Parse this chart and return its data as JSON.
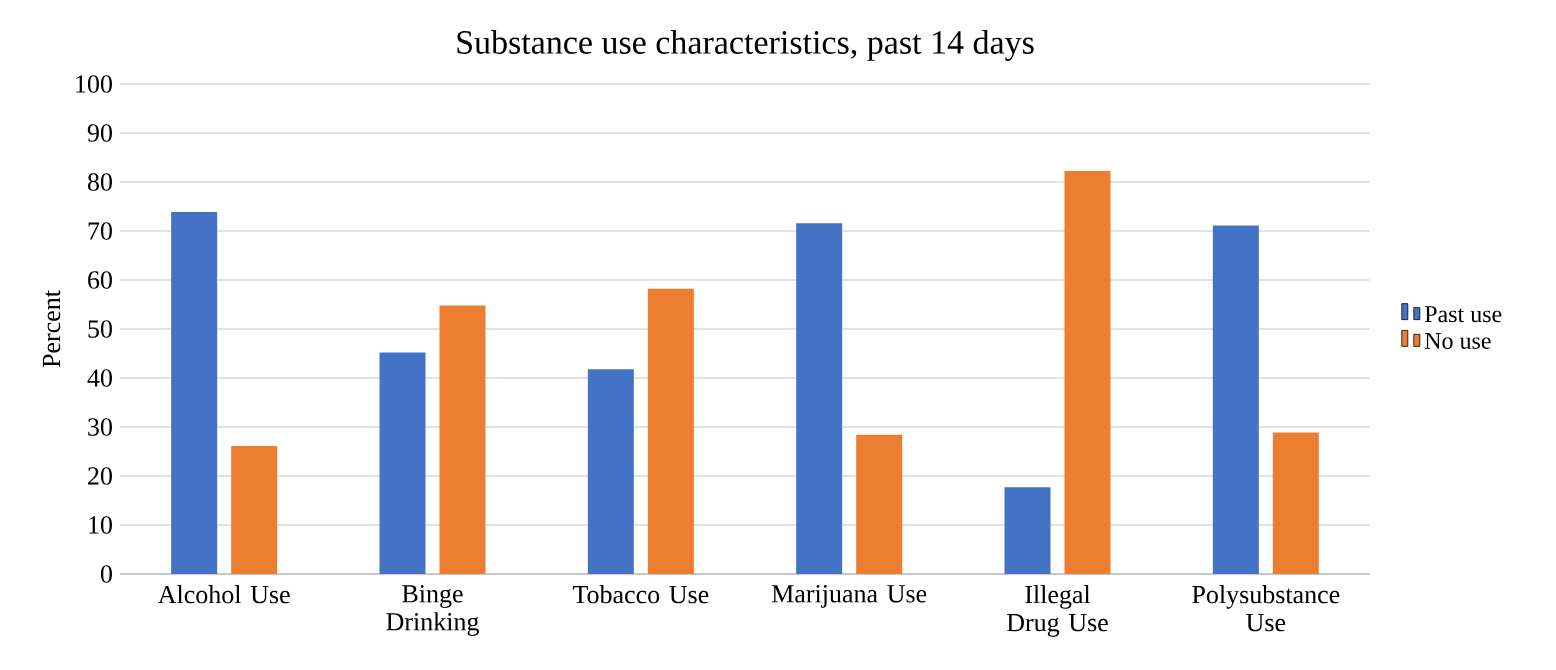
{
  "chart_data": {
    "type": "bar",
    "title": "Substance use characteristics, past 14 days",
    "ylabel": "Percent",
    "categories": [
      "Alcohol Use",
      "Binge Drinking",
      "Tobacco Use",
      "Marijuana Use",
      "Illegal Drug Use",
      "Polysubstance Use"
    ],
    "series": [
      {
        "name": "Past use",
        "color": "#4472c4",
        "values": [
          73.9,
          45.2,
          41.8,
          71.6,
          17.7,
          71.1
        ]
      },
      {
        "name": "No use",
        "color": "#ed7d31",
        "values": [
          26.1,
          54.8,
          58.2,
          28.4,
          82.3,
          28.9
        ]
      }
    ],
    "ylim": [
      0,
      100
    ],
    "yticks": [
      0,
      10,
      20,
      30,
      40,
      50,
      60,
      70,
      80,
      90,
      100
    ],
    "grid": "y",
    "legend": "right"
  }
}
